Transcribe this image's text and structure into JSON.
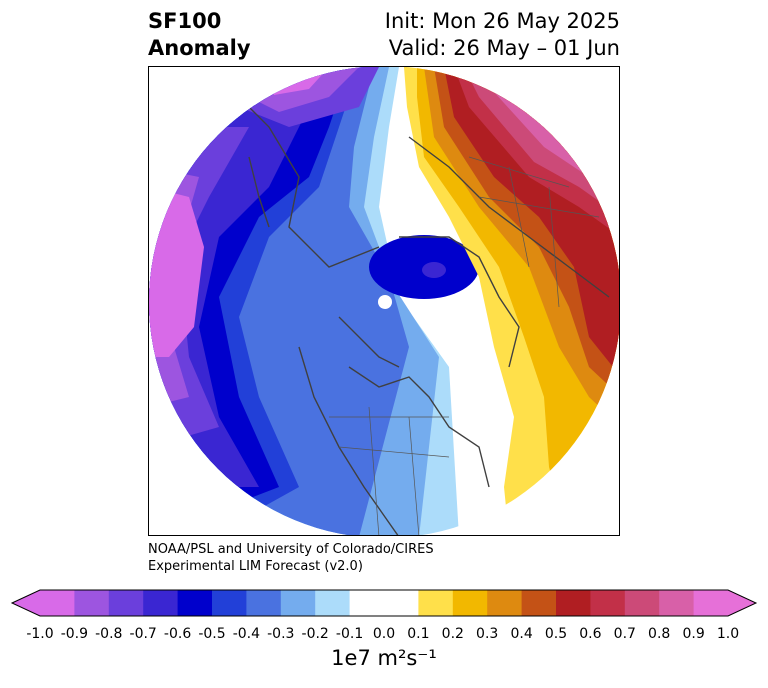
{
  "title": {
    "left_line1": "SF100",
    "left_line2": "Anomaly",
    "right_line1": "Init: Mon 26 May 2025",
    "right_line2": "Valid: 26 May – 01 Jun"
  },
  "credit": {
    "line1": "NOAA/PSL and University of Colorado/CIRES",
    "line2": "Experimental LIM Forecast (v2.0)"
  },
  "colorbar": {
    "label": "1e7 m²s⁻¹",
    "ticks": [
      "-1.0",
      "-0.9",
      "-0.8",
      "-0.7",
      "-0.6",
      "-0.5",
      "-0.4",
      "-0.3",
      "-0.2",
      "-0.1",
      "0.0",
      "0.1",
      "0.2",
      "0.3",
      "0.4",
      "0.5",
      "0.6",
      "0.7",
      "0.8",
      "0.9",
      "1.0"
    ],
    "colors": [
      "#d86ae8",
      "#9d55e0",
      "#6b3fdc",
      "#3a26d2",
      "#0000cc",
      "#2240d8",
      "#4a72e0",
      "#74acee",
      "#acdcfa",
      "#ffffff",
      "#ffffff",
      "#ffe04a",
      "#f2b800",
      "#de8a10",
      "#c45216",
      "#b01e22",
      "#c23048",
      "#cc4a78",
      "#d860a8",
      "#e670d8"
    ]
  }
}
